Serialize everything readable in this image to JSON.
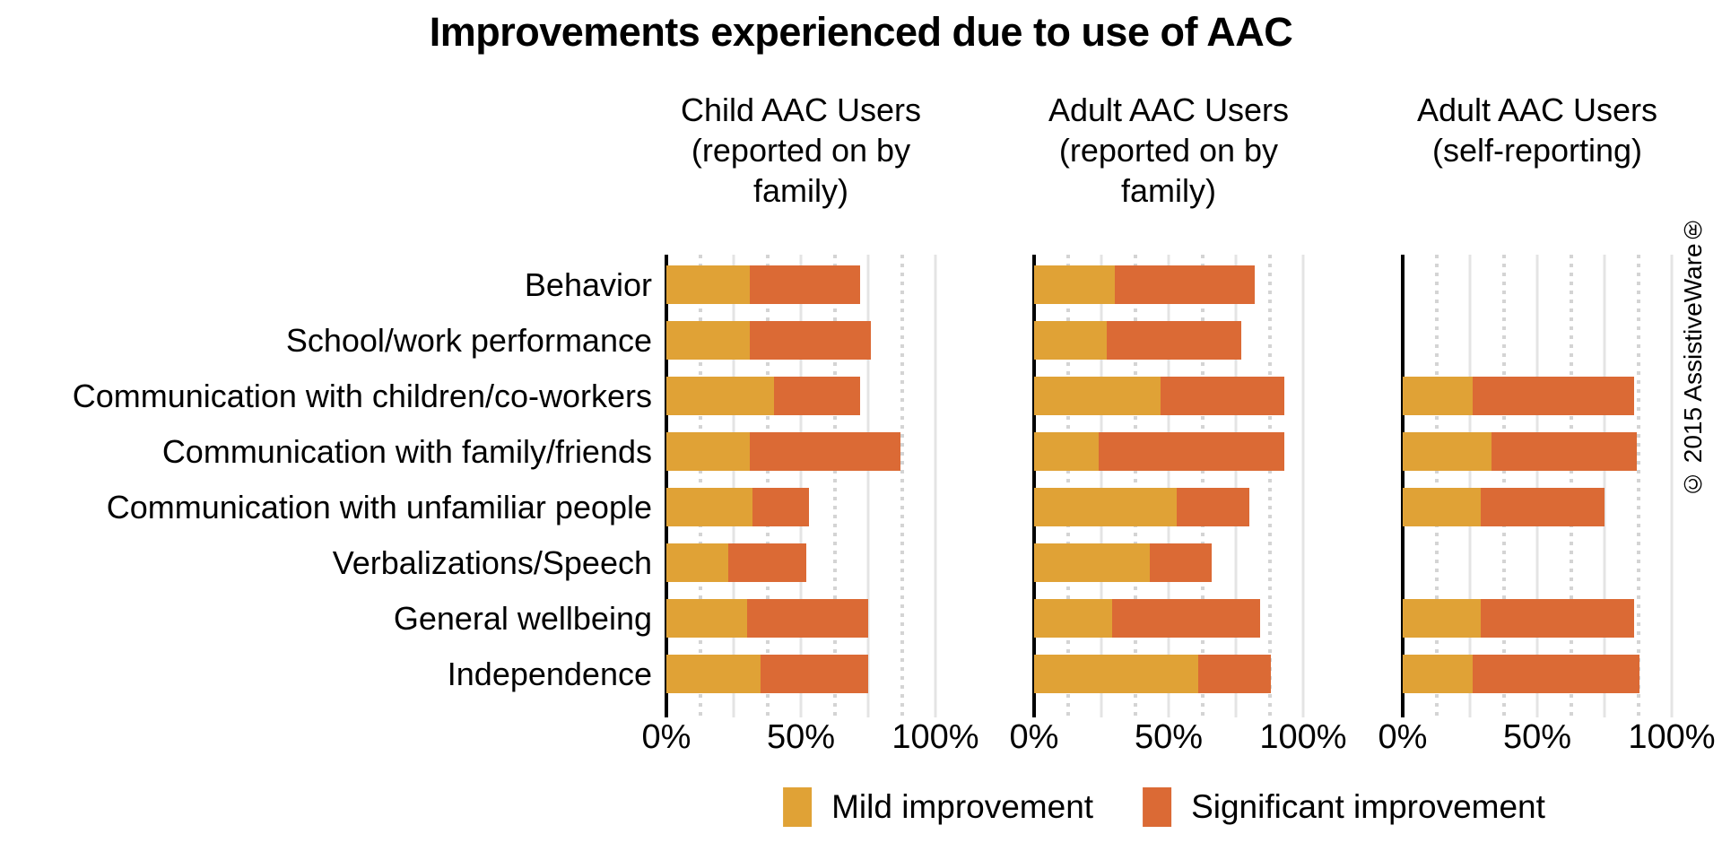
{
  "title": "Improvements experienced due to use of AAC",
  "copyright": "© 2015 AssistiveWare®",
  "legend": {
    "items": [
      {
        "label": "Mild improvement",
        "color": "#E0A236"
      },
      {
        "label": "Significant improvement",
        "color": "#DB6A35"
      }
    ]
  },
  "chart_data": {
    "type": "bar",
    "orientation": "horizontal",
    "stacked": true,
    "title": "Improvements experienced due to use of AAC",
    "xlabel": "",
    "ylabel": "",
    "xlim": [
      0,
      100
    ],
    "xticks": [
      {
        "label": "0%",
        "value": 0
      },
      {
        "label": "50%",
        "value": 50
      },
      {
        "label": "100%",
        "value": 100
      }
    ],
    "gridlines": {
      "solid": [
        25,
        50,
        75,
        100
      ],
      "dotted": [
        12.5,
        37.5,
        62.5,
        87.5
      ]
    },
    "legend_position": "bottom",
    "series_names": [
      "Mild improvement",
      "Significant improvement"
    ],
    "colors": {
      "mild": "#E0A236",
      "significant": "#DB6A35"
    },
    "categories": [
      "Behavior",
      "School/work performance",
      "Communication with children/co-workers",
      "Communication with family/friends",
      "Communication with unfamiliar people",
      "Verbalizations/Speech",
      "General wellbeing",
      "Independence"
    ],
    "panels": [
      {
        "title": "Child AAC Users (reported on by family)",
        "title_lines": [
          "Child AAC Users",
          "(reported on by",
          "family)"
        ],
        "series": [
          {
            "name": "Mild improvement",
            "values": [
              31,
              31,
              40,
              31,
              32,
              23,
              30,
              35
            ]
          },
          {
            "name": "Significant improvement",
            "values": [
              41,
              45,
              32,
              56,
              21,
              29,
              45,
              40
            ]
          }
        ]
      },
      {
        "title": "Adult AAC Users (reported on by family)",
        "title_lines": [
          "Adult AAC Users",
          "(reported on by",
          "family)"
        ],
        "series": [
          {
            "name": "Mild improvement",
            "values": [
              30,
              27,
              47,
              24,
              53,
              43,
              29,
              61
            ]
          },
          {
            "name": "Significant improvement",
            "values": [
              52,
              50,
              46,
              69,
              27,
              23,
              55,
              27
            ]
          }
        ]
      },
      {
        "title": "Adult AAC Users (self-reporting)",
        "title_lines": [
          "Adult AAC Users",
          "(self-reporting)"
        ],
        "series": [
          {
            "name": "Mild improvement",
            "values": [
              0,
              0,
              26,
              33,
              29,
              0,
              29,
              26
            ]
          },
          {
            "name": "Significant improvement",
            "values": [
              0,
              0,
              60,
              54,
              46,
              0,
              57,
              62
            ]
          }
        ]
      }
    ]
  }
}
